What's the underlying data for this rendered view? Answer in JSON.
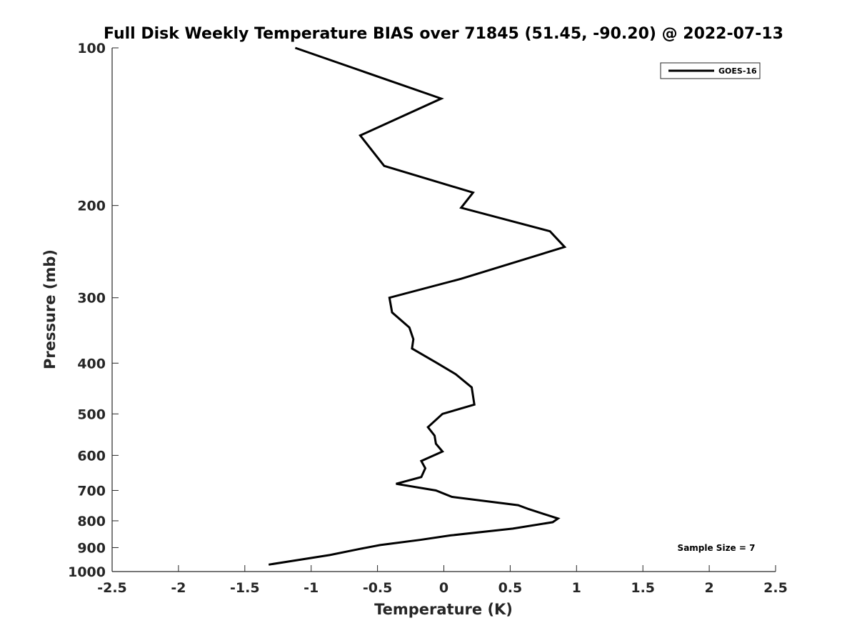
{
  "chart_data": {
    "type": "line",
    "title": "Full Disk Weekly Temperature BIAS over 71845 (51.45, -90.20) @ 2022-07-13",
    "xlabel": "Temperature (K)",
    "ylabel": "Pressure (mb)",
    "xlim": [
      -2.5,
      2.5
    ],
    "ylim": [
      100,
      1000
    ],
    "y_scale": "log",
    "y_reversed": true,
    "grid": false,
    "legend_position": "top-right",
    "x_ticks": [
      -2.5,
      -2,
      -1.5,
      -1,
      -0.5,
      0,
      0.5,
      1,
      1.5,
      2,
      2.5
    ],
    "x_tick_labels": [
      "-2.5",
      "-2",
      "-1.5",
      "-1",
      "-0.5",
      "0",
      "0.5",
      "1",
      "1.5",
      "2",
      "2.5"
    ],
    "y_ticks": [
      100,
      200,
      300,
      400,
      500,
      600,
      700,
      800,
      900,
      1000
    ],
    "y_tick_labels": [
      "100",
      "200",
      "300",
      "400",
      "500",
      "600",
      "700",
      "800",
      "900",
      "1000"
    ],
    "line_color": "#000000",
    "series": [
      {
        "name": "GOES-16",
        "x": [
          -1.12,
          -0.02,
          -0.63,
          -0.45,
          0.22,
          0.13,
          0.8,
          0.91,
          0.13,
          -0.41,
          -0.39,
          -0.26,
          -0.23,
          -0.24,
          -0.05,
          0.09,
          0.21,
          0.23,
          -0.01,
          -0.12,
          -0.07,
          -0.06,
          -0.01,
          -0.17,
          -0.14,
          -0.17,
          -0.36,
          -0.06,
          0.06,
          0.56,
          0.64,
          0.86,
          0.82,
          0.52,
          0.05,
          -0.18,
          -0.48,
          -0.63,
          -0.86,
          -1.32
        ],
        "y": [
          100,
          125,
          147,
          168,
          189,
          202,
          224,
          240,
          276,
          300,
          320,
          342,
          360,
          375,
          400,
          420,
          445,
          480,
          500,
          530,
          550,
          570,
          590,
          615,
          635,
          660,
          680,
          700,
          720,
          747,
          760,
          792,
          805,
          828,
          853,
          870,
          890,
          905,
          930,
          970
        ]
      }
    ],
    "annotations": [
      "Sample Size = 7"
    ]
  }
}
